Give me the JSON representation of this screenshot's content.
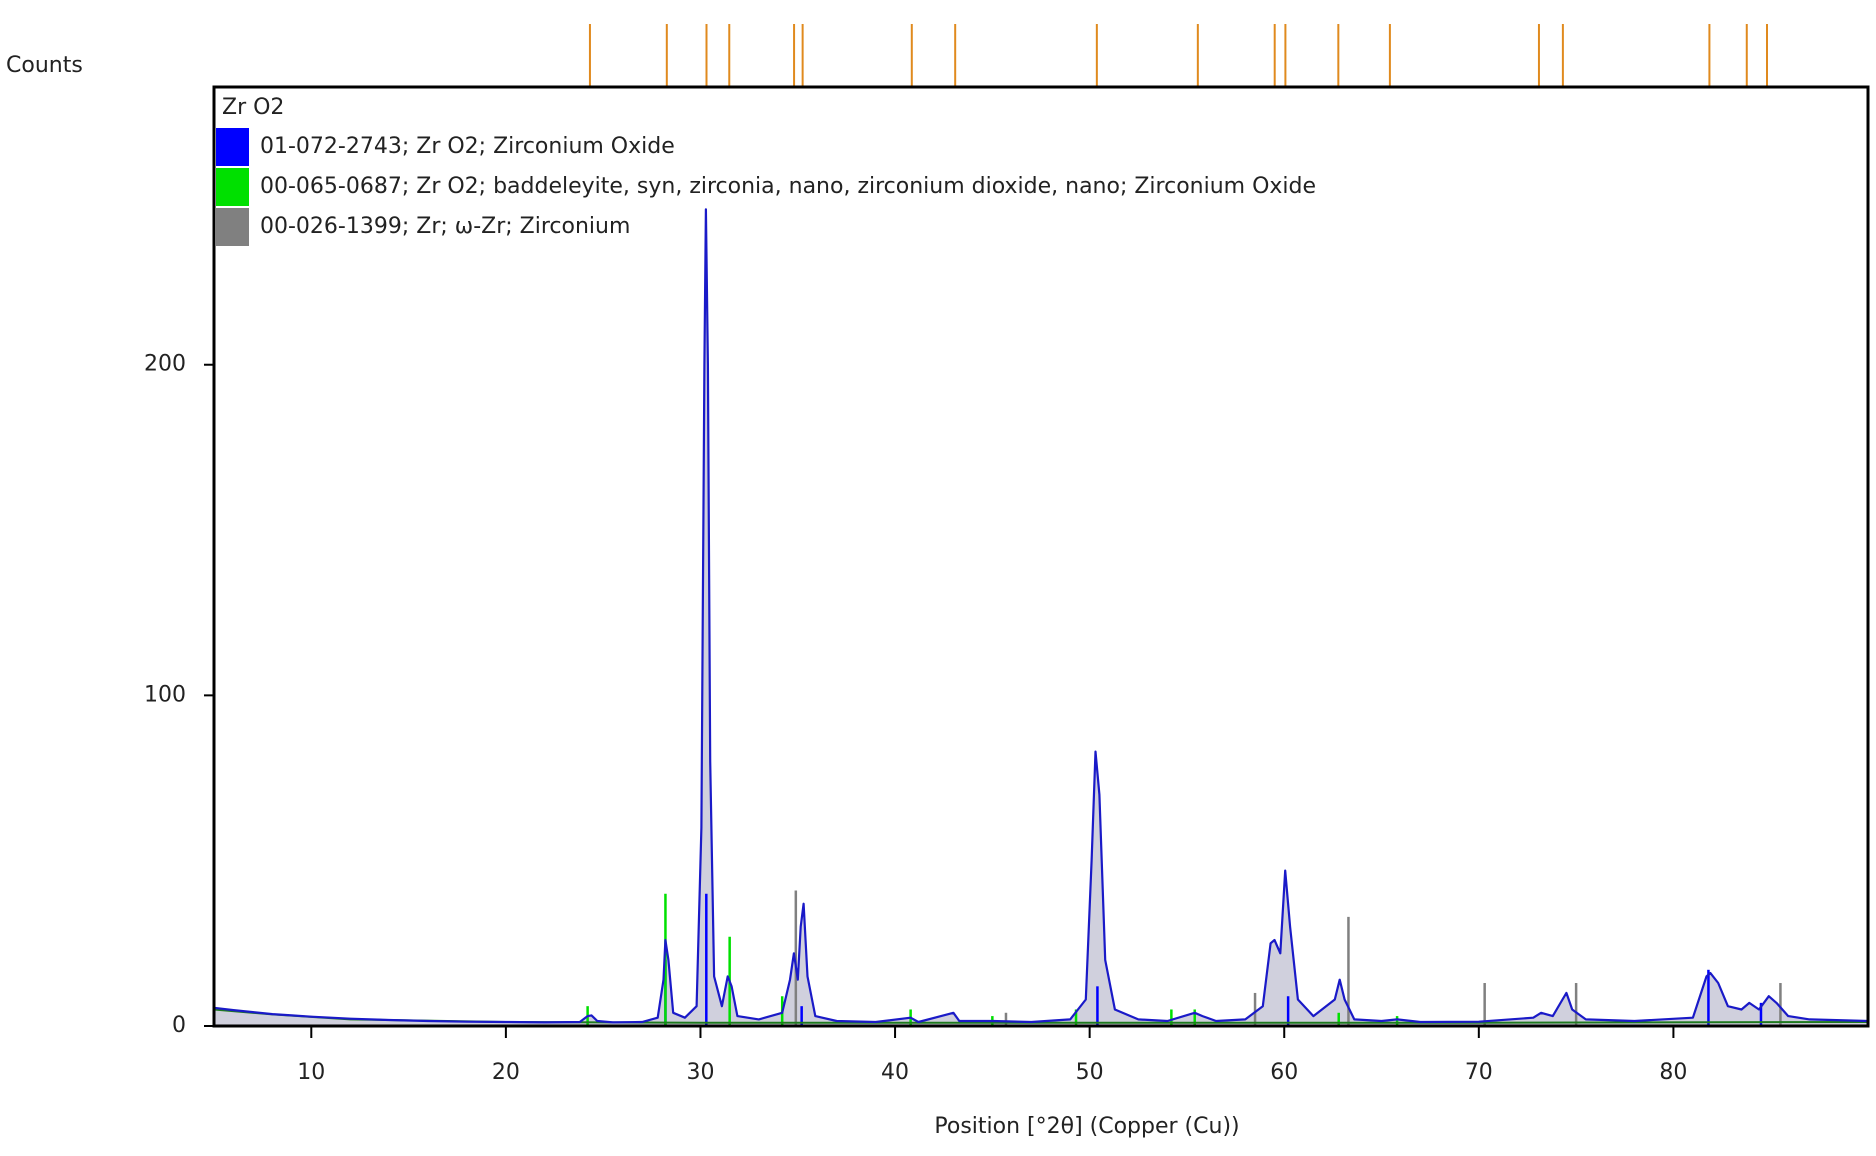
{
  "chart_data": {
    "type": "line",
    "y_label": "Counts",
    "x_label": "Position [°2θ] (Copper (Cu))",
    "legend_title": "Zr O2",
    "xlim": [
      5,
      90
    ],
    "ylim": [
      0,
      284
    ],
    "xticks": [
      10,
      20,
      30,
      40,
      50,
      60,
      70,
      80
    ],
    "yticks": [
      0,
      100,
      200
    ],
    "color": "#1a1ac8",
    "fill": "#c4c4d4",
    "x": [
      5,
      6,
      7,
      8,
      9,
      10,
      12,
      14,
      16,
      18,
      20,
      22,
      23.8,
      24.2,
      24.4,
      24.7,
      25.5,
      27,
      27.8,
      28.1,
      28.2,
      28.35,
      28.6,
      29.2,
      29.8,
      30.05,
      30.2,
      30.28,
      30.38,
      30.5,
      30.7,
      31.1,
      31.4,
      31.6,
      31.9,
      33,
      34.2,
      34.6,
      34.8,
      35.0,
      35.15,
      35.3,
      35.5,
      35.9,
      37,
      39,
      40.8,
      41.2,
      43.0,
      43.3,
      45,
      47,
      49,
      49.8,
      50.1,
      50.3,
      50.5,
      50.8,
      51.3,
      52.5,
      54,
      55.4,
      55.8,
      56.5,
      58,
      58.9,
      59.3,
      59.5,
      59.8,
      60.05,
      60.3,
      60.7,
      61.5,
      62.6,
      62.85,
      63.1,
      63.6,
      65,
      65.8,
      67,
      70,
      72.8,
      73.2,
      73.8,
      74.3,
      74.5,
      74.8,
      75.5,
      78,
      81,
      81.7,
      81.9,
      82.3,
      82.8,
      83.5,
      83.9,
      84.4,
      84.9,
      85.3,
      85.9,
      87,
      90
    ],
    "values": [
      5.5,
      4.8,
      4.2,
      3.6,
      3.2,
      2.8,
      2.2,
      1.8,
      1.5,
      1.3,
      1.2,
      1.1,
      1.2,
      3,
      3.2,
      1.5,
      1.1,
      1.2,
      2.5,
      14,
      26,
      20,
      4,
      2.5,
      6,
      60,
      200,
      247,
      200,
      80,
      15,
      6,
      15,
      12,
      3,
      2,
      4,
      14,
      22,
      14,
      30,
      37,
      15,
      3,
      1.5,
      1.2,
      2.5,
      1.2,
      4,
      1.5,
      1.5,
      1.2,
      2,
      8,
      50,
      83,
      70,
      20,
      5,
      2,
      1.5,
      4,
      3,
      1.5,
      2,
      6,
      25,
      26,
      22,
      47,
      30,
      8,
      3,
      8,
      14,
      8,
      2,
      1.5,
      2,
      1.2,
      1.3,
      2.5,
      4,
      3,
      8,
      10,
      5,
      2,
      1.5,
      2.5,
      15,
      16,
      13,
      6,
      5,
      7,
      5,
      9,
      7,
      3,
      2,
      1.5
    ],
    "background": {
      "color": "#1f7a1f",
      "x": [
        5,
        8,
        12,
        20,
        30,
        50,
        70,
        90
      ],
      "values": [
        5,
        3.5,
        2,
        1.2,
        1,
        1,
        1,
        1.2
      ]
    },
    "reference_patterns": [
      {
        "name": "01-072-2743; Zr O2; Zirconium Oxide",
        "color": "#0000ff",
        "x": [
          28.2,
          30.3,
          35.2,
          50.4,
          60.2,
          81.8,
          84.5
        ],
        "values": [
          20,
          40,
          6,
          12,
          9,
          17,
          7
        ]
      },
      {
        "name": "00-065-0687; Zr O2; baddeleyite, syn, zirconia, nano, zirconium dioxide, nano; Zirconium Oxide",
        "color": "#00e000",
        "x": [
          24.2,
          28.2,
          31.5,
          34.2,
          40.8,
          45.0,
          49.3,
          54.2,
          55.4,
          62.8,
          65.8
        ],
        "values": [
          6,
          40,
          27,
          9,
          5,
          3,
          5,
          5,
          5,
          4,
          3
        ]
      },
      {
        "name": "00-026-1399; Zr; ω-Zr; Zirconium",
        "color": "#808080",
        "x": [
          34.9,
          45.7,
          58.5,
          63.3,
          70.3,
          75.0,
          85.5
        ],
        "values": [
          41,
          4,
          10,
          33,
          13,
          13,
          13
        ]
      }
    ],
    "peak_positions": {
      "color": "#e08a1e",
      "x": [
        24.32,
        28.27,
        30.31,
        31.48,
        34.81,
        35.25,
        40.86,
        43.09,
        50.37,
        55.56,
        59.51,
        60.06,
        62.78,
        65.43,
        73.09,
        74.32,
        81.85,
        83.77,
        84.81
      ]
    }
  }
}
